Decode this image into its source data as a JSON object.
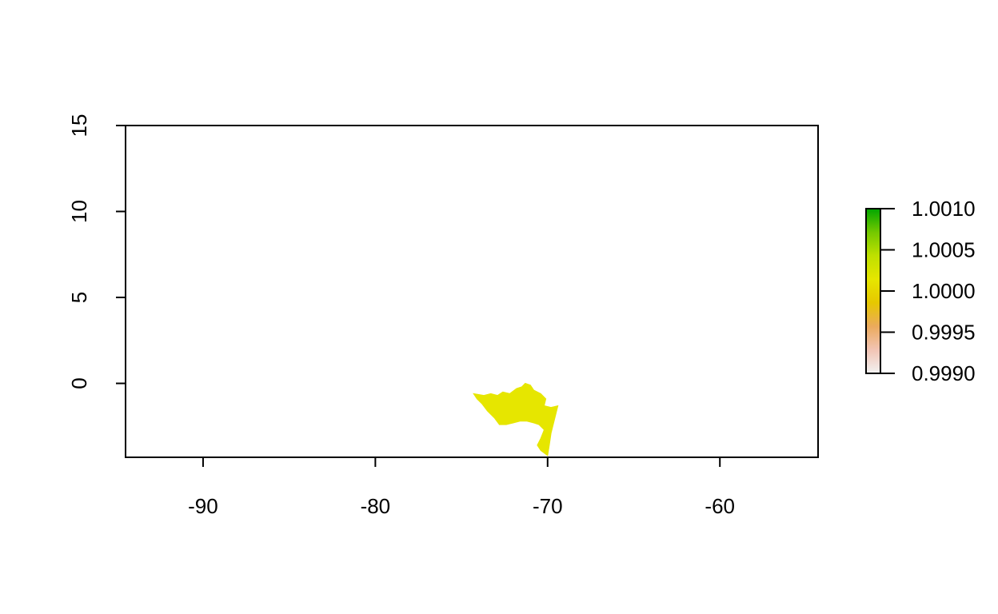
{
  "map": {
    "type": "raster",
    "xlim": [
      -94.5,
      -54.3
    ],
    "ylim": [
      -4.3,
      15
    ],
    "x_ticks": [
      {
        "value": -90,
        "label": "-90"
      },
      {
        "value": -80,
        "label": "-80"
      },
      {
        "value": -70,
        "label": "-70"
      },
      {
        "value": -60,
        "label": "-60"
      }
    ],
    "y_ticks": [
      {
        "value": 0,
        "label": "0"
      },
      {
        "value": 5,
        "label": "5"
      },
      {
        "value": 10,
        "label": "10"
      },
      {
        "value": 15,
        "label": "15"
      }
    ],
    "region": {
      "value": 1.0,
      "color": "#e6e600",
      "outline": [
        [
          -74.3,
          -0.6
        ],
        [
          -73.7,
          -0.7
        ],
        [
          -73.3,
          -0.6
        ],
        [
          -72.9,
          -0.7
        ],
        [
          -72.6,
          -0.5
        ],
        [
          -72.2,
          -0.6
        ],
        [
          -71.8,
          -0.3
        ],
        [
          -71.5,
          -0.2
        ],
        [
          -71.3,
          0.0
        ],
        [
          -71.0,
          -0.1
        ],
        [
          -70.8,
          -0.4
        ],
        [
          -70.4,
          -0.6
        ],
        [
          -70.1,
          -0.9
        ],
        [
          -70.2,
          -1.3
        ],
        [
          -69.8,
          -1.4
        ],
        [
          -69.4,
          -1.3
        ],
        [
          -69.6,
          -2.1
        ],
        [
          -69.8,
          -2.9
        ],
        [
          -69.9,
          -3.6
        ],
        [
          -70.0,
          -4.2
        ],
        [
          -70.4,
          -3.9
        ],
        [
          -70.6,
          -3.6
        ],
        [
          -70.4,
          -3.2
        ],
        [
          -70.2,
          -2.7
        ],
        [
          -70.5,
          -2.4
        ],
        [
          -70.8,
          -2.3
        ],
        [
          -71.2,
          -2.2
        ],
        [
          -71.6,
          -2.2
        ],
        [
          -72.0,
          -2.3
        ],
        [
          -72.4,
          -2.4
        ],
        [
          -72.8,
          -2.4
        ],
        [
          -73.1,
          -2.0
        ],
        [
          -73.5,
          -1.6
        ],
        [
          -73.8,
          -1.2
        ],
        [
          -74.1,
          -0.9
        ]
      ]
    }
  },
  "legend": {
    "min": 0.999,
    "max": 1.001,
    "gradient": [
      "#f2f2f2",
      "#f2c4b4",
      "#ebaa5c",
      "#e6c800",
      "#e6e600",
      "#bfe000",
      "#74c800",
      "#00a600"
    ],
    "ticks": [
      {
        "value": 1.001,
        "label": "1.0010"
      },
      {
        "value": 1.0005,
        "label": "1.0005"
      },
      {
        "value": 1.0,
        "label": "1.0000"
      },
      {
        "value": 0.9995,
        "label": "0.9995"
      },
      {
        "value": 0.999,
        "label": "0.9990"
      }
    ]
  }
}
